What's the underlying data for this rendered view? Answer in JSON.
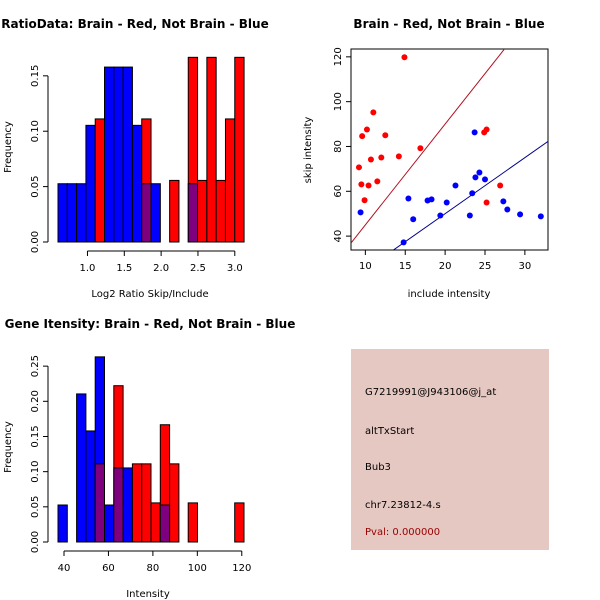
{
  "colors": {
    "brain": "#ff0000",
    "not_brain": "#0000ff",
    "overlap": "#7f007f",
    "brain_line": "#b01020",
    "not_brain_line": "#00008b",
    "info_bg": "#e6c8c2",
    "pval": "#990000"
  },
  "chart_data": [
    {
      "id": "ratio_hist",
      "type": "bar",
      "subtype": "overlaid-histogram",
      "title": "RatioData: Brain - Red, Not Brain - Blue",
      "xlabel": "Log2 Ratio Skip/Include",
      "ylabel": "Frequency",
      "xlim": [
        0.6,
        3.125
      ],
      "ylim": [
        0,
        0.167
      ],
      "xticks": [
        1.0,
        1.5,
        2.0,
        2.5,
        3.0
      ],
      "xtick_labels": [
        "1.0",
        "1.5",
        "2.0",
        "2.5",
        "3.0"
      ],
      "yticks": [
        0.0,
        0.05,
        0.1,
        0.15
      ],
      "ytick_labels": [
        "0.00",
        "0.05",
        "0.10",
        "0.15"
      ],
      "bin_start": 0.6,
      "bin_width": 0.1263,
      "series": [
        {
          "name": "Not Brain",
          "color_key": "not_brain",
          "values": [
            0.0526,
            0.0526,
            0.0526,
            0.1053,
            0,
            0.1579,
            0.1579,
            0.1579,
            0.1053,
            0.0526,
            0.0526,
            0,
            0,
            0,
            0.0526,
            0,
            0,
            0,
            0,
            0
          ]
        },
        {
          "name": "Brain",
          "color_key": "brain",
          "values": [
            0,
            0,
            0,
            0,
            0.1111,
            0,
            0,
            0,
            0,
            0.1111,
            0,
            0,
            0.0556,
            0,
            0.1667,
            0.0556,
            0.1667,
            0.0556,
            0.1111,
            0.1667
          ]
        }
      ]
    },
    {
      "id": "intensity_scatter",
      "type": "scatter",
      "title": "Brain - Red, Not Brain - Blue",
      "xlabel": "include intensity",
      "ylabel": "skip intensity",
      "xlim": [
        8.2,
        32.9
      ],
      "ylim": [
        33.8,
        123.5
      ],
      "xticks": [
        10,
        15,
        20,
        25,
        30
      ],
      "xtick_labels": [
        "10",
        "15",
        "20",
        "25",
        "30"
      ],
      "yticks": [
        40,
        60,
        80,
        100,
        120
      ],
      "ytick_labels": [
        "40",
        "60",
        "80",
        "100",
        "120"
      ],
      "series": [
        {
          "name": "Brain",
          "color_key": "brain",
          "points": [
            [
              9.2,
              70.7
            ],
            [
              9.5,
              63.1
            ],
            [
              9.9,
              56.0
            ],
            [
              9.6,
              84.6
            ],
            [
              10.2,
              87.6
            ],
            [
              10.4,
              62.6
            ],
            [
              10.7,
              74.2
            ],
            [
              11.0,
              95.2
            ],
            [
              11.5,
              64.4
            ],
            [
              12.0,
              75.1
            ],
            [
              12.5,
              85.0
            ],
            [
              14.2,
              75.6
            ],
            [
              14.9,
              119.8
            ],
            [
              16.9,
              79.2
            ],
            [
              24.9,
              86.3
            ],
            [
              25.2,
              87.6
            ],
            [
              25.2,
              55.0
            ],
            [
              26.9,
              62.6
            ]
          ],
          "fit_line": {
            "slope": 4.5,
            "intercept": 0.0,
            "color_key": "brain_line"
          }
        },
        {
          "name": "Not Brain",
          "color_key": "not_brain",
          "points": [
            [
              9.4,
              50.6
            ],
            [
              14.8,
              37.2
            ],
            [
              15.4,
              56.8
            ],
            [
              16.0,
              47.5
            ],
            [
              17.8,
              55.9
            ],
            [
              18.3,
              56.4
            ],
            [
              19.4,
              49.2
            ],
            [
              20.2,
              55.0
            ],
            [
              21.3,
              62.6
            ],
            [
              23.1,
              49.2
            ],
            [
              23.4,
              59.1
            ],
            [
              23.7,
              86.3
            ],
            [
              23.8,
              66.2
            ],
            [
              24.3,
              68.4
            ],
            [
              25.0,
              65.3
            ],
            [
              27.3,
              55.5
            ],
            [
              27.8,
              51.9
            ],
            [
              29.4,
              49.7
            ],
            [
              32.0,
              48.8
            ]
          ],
          "fit_line": {
            "slope": 2.5,
            "intercept": 0.0,
            "color_key": "not_brain_line"
          }
        }
      ]
    },
    {
      "id": "gene_hist",
      "type": "bar",
      "subtype": "overlaid-histogram",
      "title": "Gene Itensity: Brain - Red, Not Brain - Blue",
      "xlabel": "Intensity",
      "ylabel": "Frequency",
      "xlim": [
        37.3,
        121.0
      ],
      "ylim": [
        0,
        0.263
      ],
      "xticks": [
        40,
        60,
        80,
        100,
        120
      ],
      "xtick_labels": [
        "40",
        "60",
        "80",
        "100",
        "120"
      ],
      "yticks": [
        0.0,
        0.05,
        0.1,
        0.15,
        0.2,
        0.25
      ],
      "ytick_labels": [
        "0.00",
        "0.05",
        "0.10",
        "0.15",
        "0.20",
        "0.25"
      ],
      "bin_start": 37.3,
      "bin_width": 4.185,
      "series": [
        {
          "name": "Not Brain",
          "color_key": "not_brain",
          "values": [
            0.0526,
            0,
            0.2105,
            0.1579,
            0.2632,
            0.0526,
            0.1053,
            0.1053,
            0,
            0,
            0,
            0.0526,
            0,
            0,
            0,
            0,
            0,
            0,
            0,
            0
          ]
        },
        {
          "name": "Brain",
          "color_key": "brain",
          "values": [
            0,
            0,
            0,
            0,
            0.1111,
            0,
            0.2222,
            0,
            0.1111,
            0.1111,
            0.0556,
            0.1667,
            0.1111,
            0,
            0.0556,
            0,
            0,
            0,
            0,
            0.0556
          ]
        }
      ]
    }
  ],
  "info_panel": {
    "probe_id": "G7219991@J943106@j_at",
    "event_type": "altTxStart",
    "gene": "Bub3",
    "location": "chr7.23812-4.s",
    "pval_label": "Pval: 0.000000"
  }
}
